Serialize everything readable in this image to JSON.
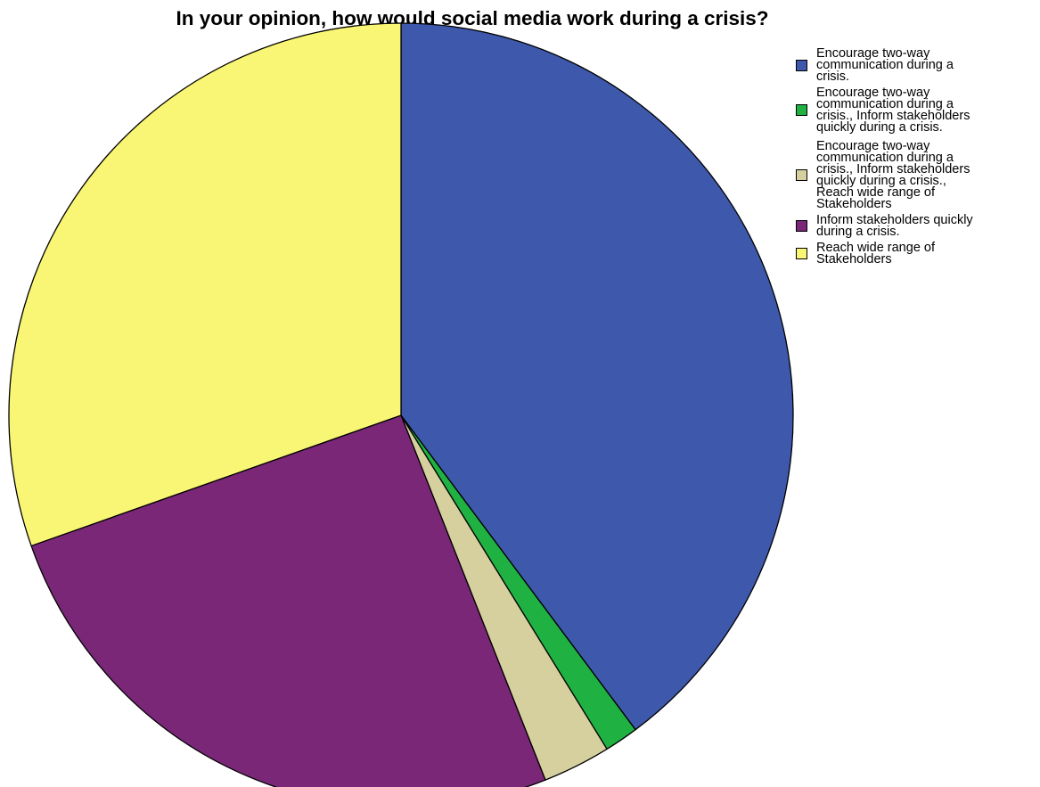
{
  "chart_data": {
    "type": "pie",
    "title": "In your opinion, how would social media work during a crisis?",
    "legend_position": "right",
    "slices": [
      {
        "label": "Encourage two-way\ncommunication during a\ncrisis.",
        "value": 39.8,
        "color": "#3E58AC"
      },
      {
        "label": "Encourage two-way\ncommunication during a\ncrisis., Inform stakeholders\nquickly during a crisis.",
        "value": 1.4,
        "color": "#1FB243"
      },
      {
        "label": "Encourage two-way\ncommunication during a\ncrisis., Inform stakeholders\nquickly during a crisis.,\nReach wide range of\nStakeholders",
        "value": 2.8,
        "color": "#D5D09E"
      },
      {
        "label": "Inform stakeholders quickly\nduring a crisis.",
        "value": 25.6,
        "color": "#7A2778"
      },
      {
        "label": "Reach wide range of\nStakeholders",
        "value": 30.4,
        "color": "#FAF675"
      }
    ]
  }
}
